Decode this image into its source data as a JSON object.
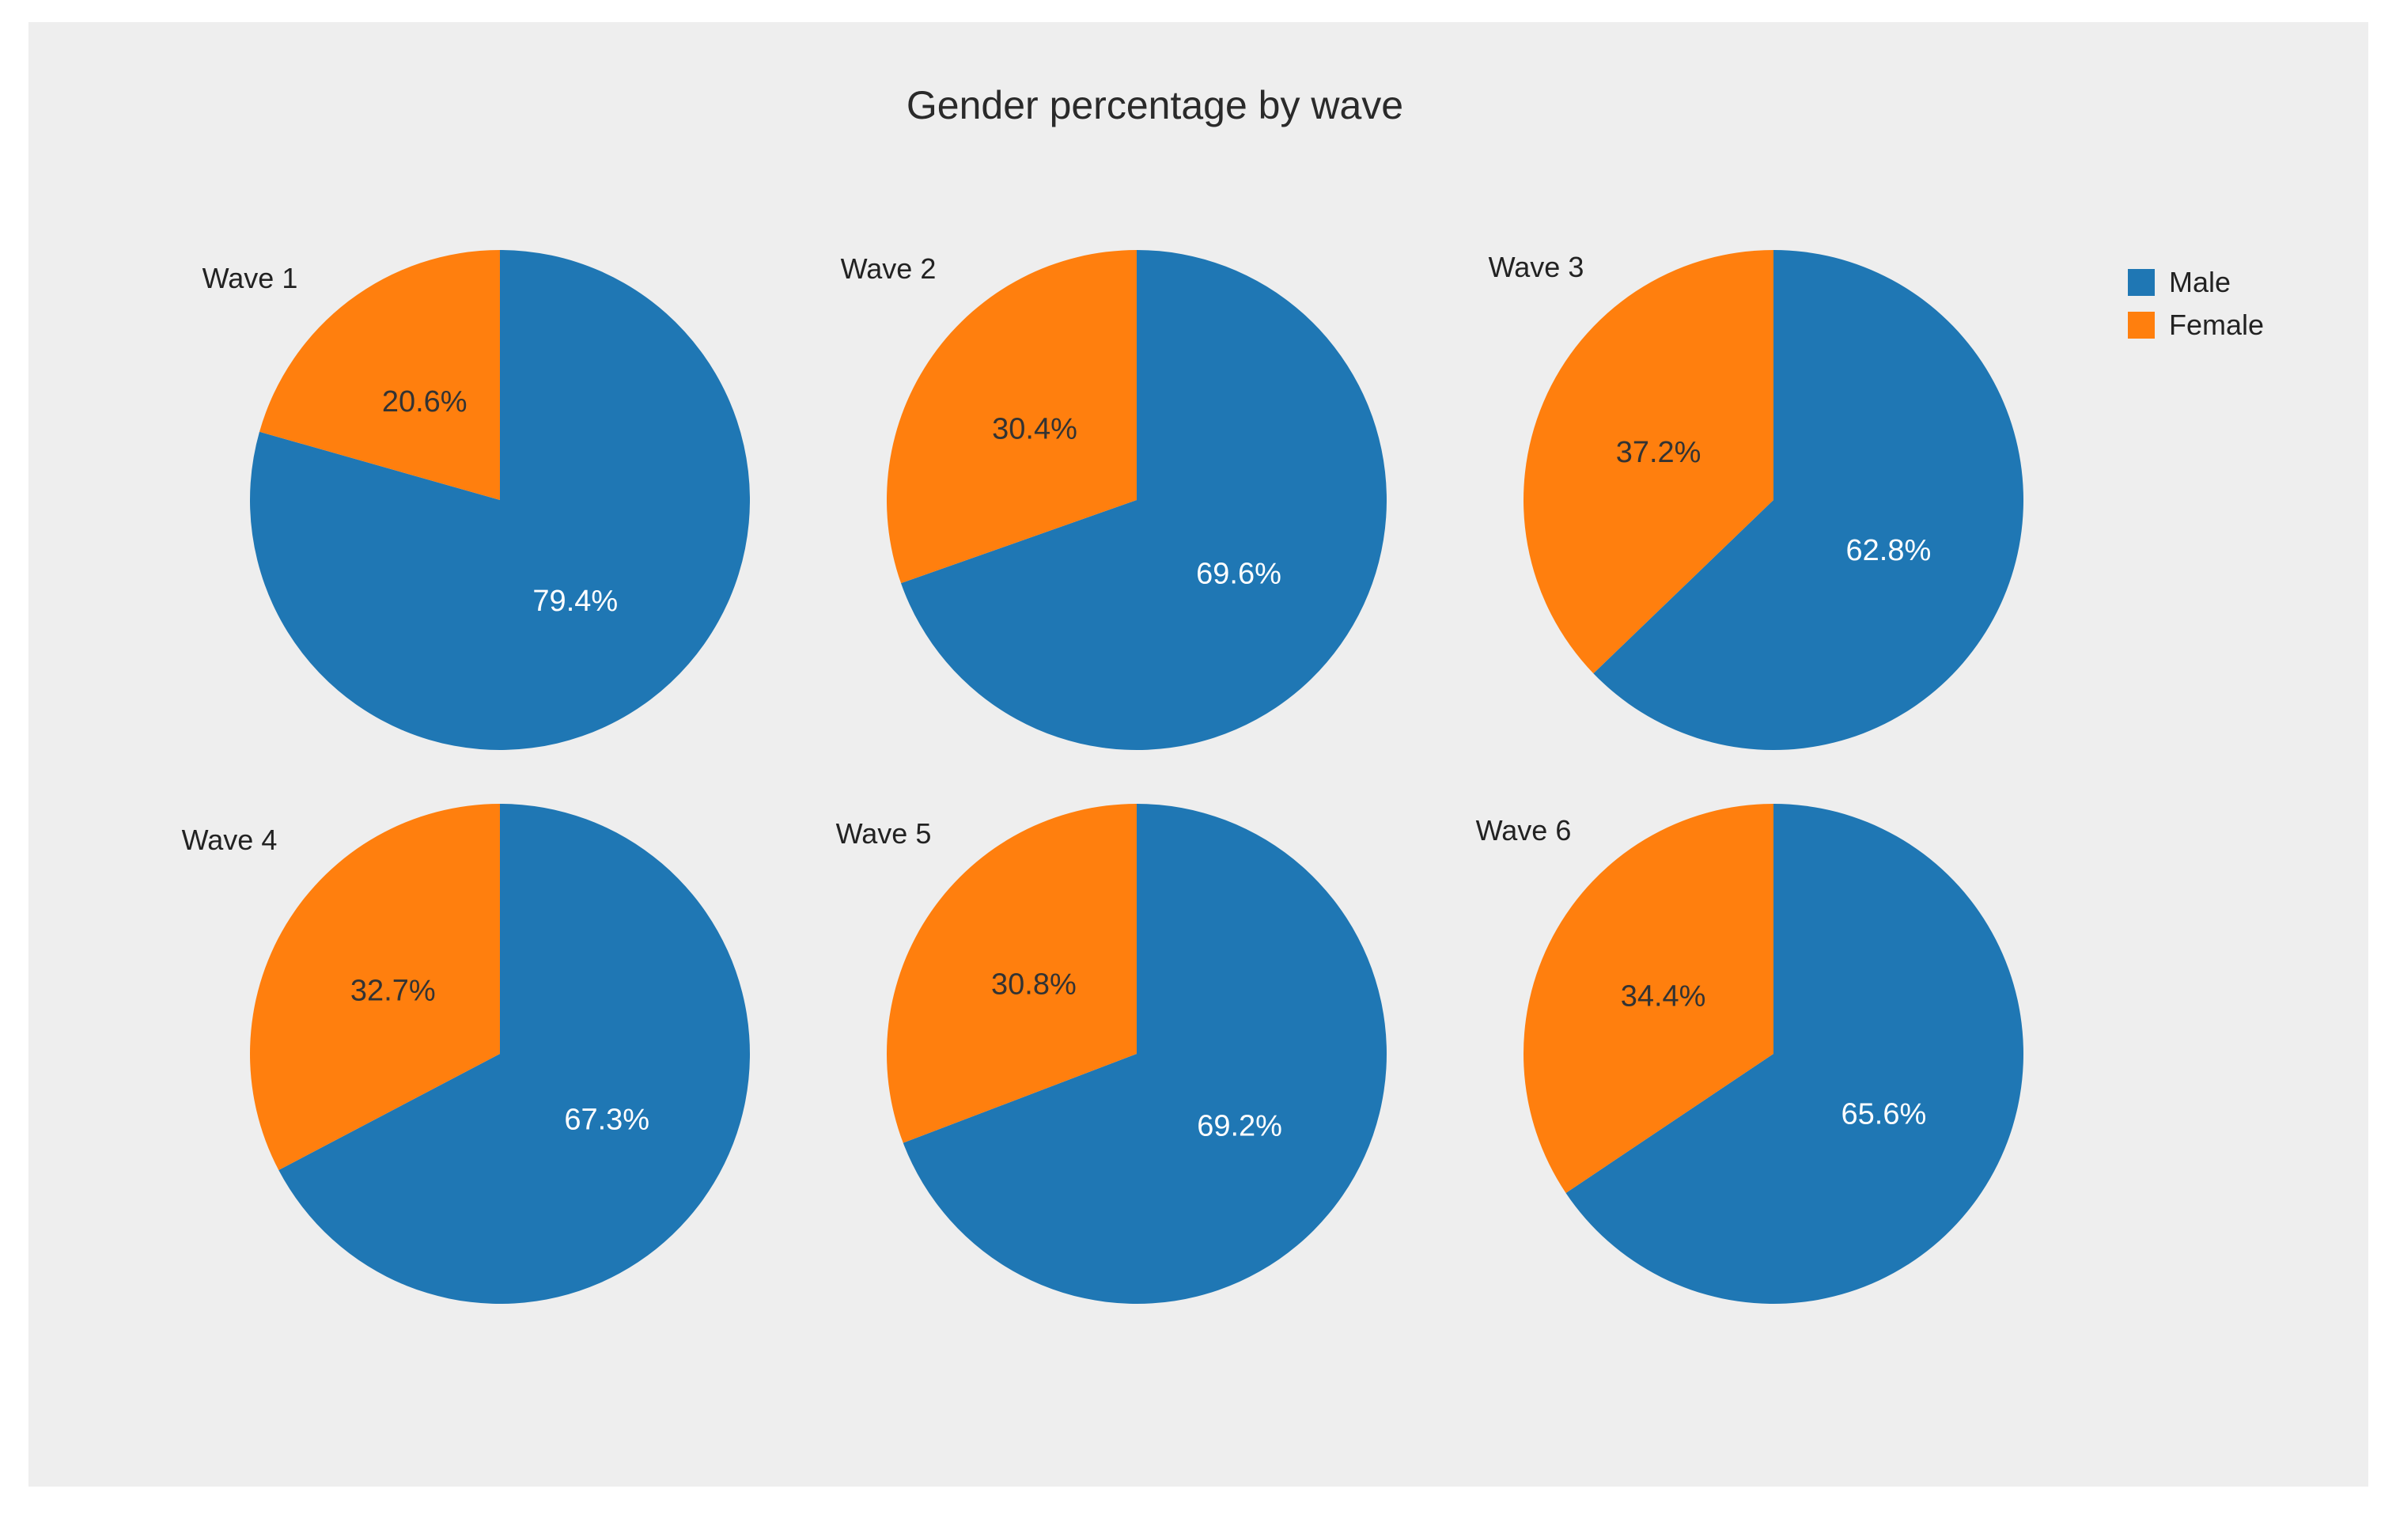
{
  "chart_data": {
    "type": "pie",
    "title": "Gender percentage by wave",
    "legend_position": "top-right",
    "series_names": [
      "Male",
      "Female"
    ],
    "colors": {
      "Male": "#1f77b4",
      "Female": "#ff7f0e"
    },
    "background": "#eeeeee",
    "pies": [
      {
        "label": "Wave 1",
        "slices": [
          {
            "name": "Male",
            "value": 79.4,
            "text": "79.4%"
          },
          {
            "name": "Female",
            "value": 20.6,
            "text": "20.6%"
          }
        ]
      },
      {
        "label": "Wave 2",
        "slices": [
          {
            "name": "Male",
            "value": 69.6,
            "text": "69.6%"
          },
          {
            "name": "Female",
            "value": 30.4,
            "text": "30.4%"
          }
        ]
      },
      {
        "label": "Wave 3",
        "slices": [
          {
            "name": "Male",
            "value": 62.8,
            "text": "62.8%"
          },
          {
            "name": "Female",
            "value": 37.2,
            "text": "37.2%"
          }
        ]
      },
      {
        "label": "Wave 4",
        "slices": [
          {
            "name": "Male",
            "value": 67.3,
            "text": "67.3%"
          },
          {
            "name": "Female",
            "value": 32.7,
            "text": "32.7%"
          }
        ]
      },
      {
        "label": "Wave 5",
        "slices": [
          {
            "name": "Male",
            "value": 69.2,
            "text": "69.2%"
          },
          {
            "name": "Female",
            "value": 30.8,
            "text": "30.8%"
          }
        ]
      },
      {
        "label": "Wave 6",
        "slices": [
          {
            "name": "Male",
            "value": 65.6,
            "text": "65.6%"
          },
          {
            "name": "Female",
            "value": 34.4,
            "text": "34.4%"
          }
        ]
      }
    ]
  }
}
